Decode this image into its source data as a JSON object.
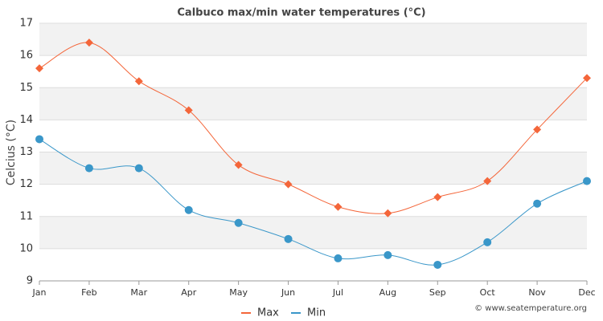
{
  "chart_data": {
    "type": "line",
    "title": "Calbuco max/min water temperatures (°C)",
    "y_label": "Celcius (°C)",
    "credit": "© www.seatemperature.org",
    "categories": [
      "Jan",
      "Feb",
      "Mar",
      "Apr",
      "May",
      "Jun",
      "Jul",
      "Aug",
      "Sep",
      "Oct",
      "Nov",
      "Dec"
    ],
    "series": [
      {
        "name": "Max",
        "color": "#f4663a",
        "marker": "diamond",
        "values": [
          15.6,
          16.4,
          15.2,
          14.3,
          12.6,
          12.0,
          11.3,
          11.1,
          11.6,
          12.1,
          13.7,
          15.3
        ]
      },
      {
        "name": "Min",
        "color": "#3a97c9",
        "marker": "circle",
        "values": [
          13.4,
          12.5,
          12.5,
          11.2,
          10.8,
          10.3,
          9.7,
          9.8,
          9.5,
          10.2,
          11.4,
          12.1
        ]
      }
    ],
    "ylim": [
      9,
      17
    ],
    "yticks": [
      9,
      10,
      11,
      12,
      13,
      14,
      15,
      16,
      17
    ],
    "grid": true
  }
}
